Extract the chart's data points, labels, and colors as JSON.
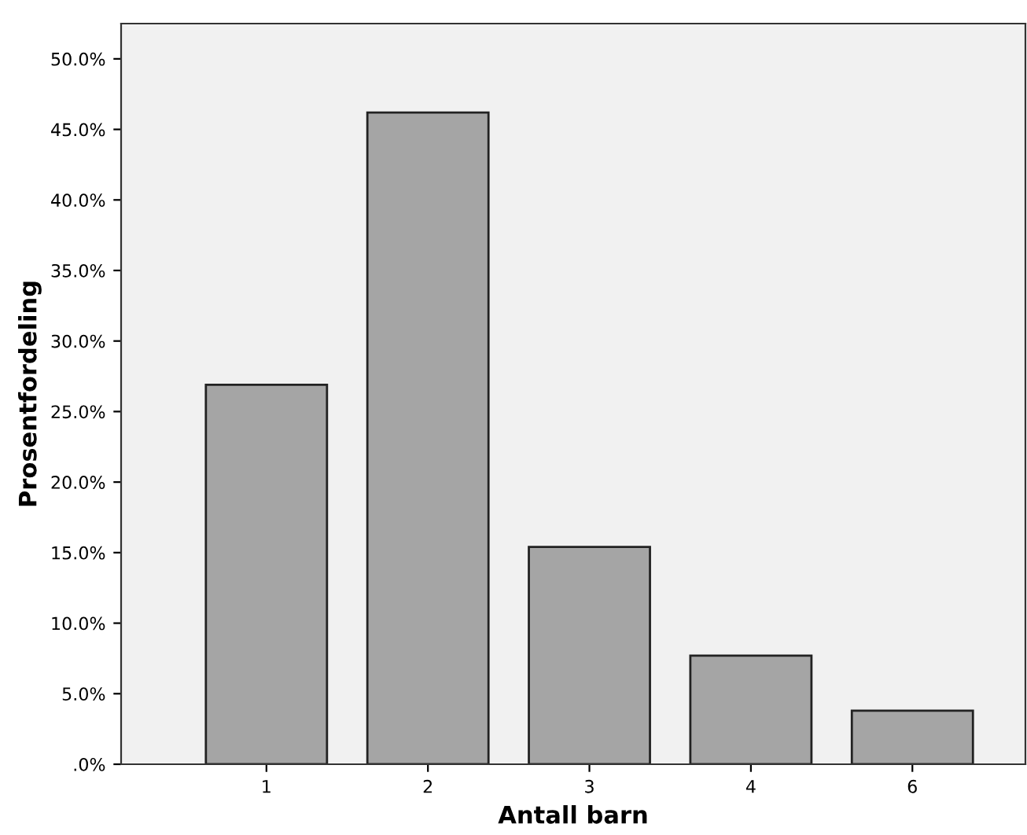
{
  "chart_data": {
    "type": "bar",
    "xlabel": "Antall barn",
    "ylabel": "Prosentfordeling",
    "categories": [
      "1",
      "2",
      "3",
      "4",
      "6"
    ],
    "values": [
      26.9,
      46.2,
      15.4,
      7.7,
      3.8
    ],
    "color": "#a5a5a5",
    "ylim": [
      0,
      52.5
    ],
    "yticks": [
      {
        "value": 0,
        "label": ".0%"
      },
      {
        "value": 5,
        "label": "5.0%"
      },
      {
        "value": 10,
        "label": "10.0%"
      },
      {
        "value": 15,
        "label": "15.0%"
      },
      {
        "value": 20,
        "label": "20.0%"
      },
      {
        "value": 25,
        "label": "25.0%"
      },
      {
        "value": 30,
        "label": "30.0%"
      },
      {
        "value": 35,
        "label": "35.0%"
      },
      {
        "value": 40,
        "label": "40.0%"
      },
      {
        "value": 45,
        "label": "45.0%"
      },
      {
        "value": 50,
        "label": "50.0%"
      }
    ],
    "grid": false,
    "legend": false
  }
}
